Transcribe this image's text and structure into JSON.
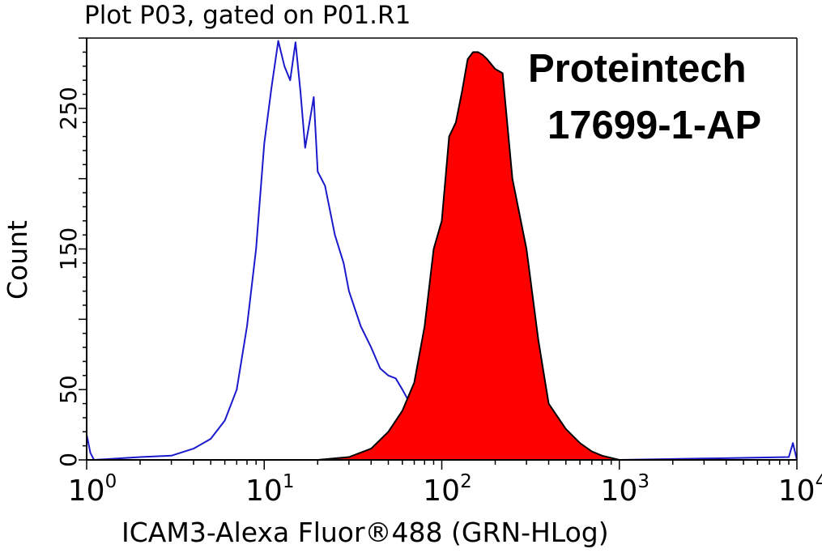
{
  "chart_data": {
    "type": "area",
    "title": "Plot P03, gated on P01.R1",
    "xlabel": "ICAM3-Alexa Fluor®488 (GRN-HLog)",
    "ylabel": "Count",
    "xscale": "log",
    "xlim": [
      1,
      10000
    ],
    "ylim": [
      0,
      300
    ],
    "x_ticks": [
      {
        "value": 1,
        "base": "10",
        "exp": "0"
      },
      {
        "value": 10,
        "base": "10",
        "exp": "1"
      },
      {
        "value": 100,
        "base": "10",
        "exp": "2"
      },
      {
        "value": 1000,
        "base": "10",
        "exp": "3"
      },
      {
        "value": 10000,
        "base": "10",
        "exp": "4"
      }
    ],
    "y_ticks": [
      "0",
      "50",
      "150",
      "250"
    ],
    "y_tick_values": [
      0,
      50,
      150,
      250
    ],
    "annotations": [
      "Proteintech",
      "17699-1-AP"
    ],
    "series": [
      {
        "style": "outline",
        "color": "#1a1acc",
        "x": [
          1,
          1.05,
          1.1,
          2,
          3,
          4,
          5,
          6,
          7,
          8,
          9,
          10,
          11,
          12,
          13,
          14,
          15,
          16,
          17,
          18,
          19,
          20,
          22,
          25,
          28,
          30,
          35,
          40,
          45,
          50,
          55,
          60,
          65,
          70,
          75,
          80,
          90,
          100,
          110,
          130,
          200,
          500,
          1000,
          3000,
          9000,
          9500,
          10000
        ],
        "y": [
          18,
          5,
          0,
          2,
          3,
          8,
          15,
          28,
          50,
          95,
          150,
          225,
          265,
          298,
          280,
          270,
          297,
          262,
          222,
          240,
          258,
          205,
          195,
          160,
          140,
          120,
          95,
          80,
          65,
          60,
          58,
          50,
          42,
          38,
          25,
          22,
          15,
          8,
          4,
          2,
          1,
          0,
          0,
          1,
          2,
          12,
          0
        ]
      },
      {
        "style": "filled",
        "color": "#ff0000",
        "x": [
          20,
          30,
          40,
          50,
          60,
          70,
          80,
          90,
          100,
          110,
          120,
          130,
          140,
          150,
          160,
          170,
          180,
          200,
          220,
          250,
          300,
          350,
          400,
          500,
          600,
          700,
          800,
          1000
        ],
        "y": [
          0,
          2,
          8,
          20,
          35,
          55,
          95,
          150,
          170,
          230,
          240,
          262,
          285,
          290,
          290,
          288,
          285,
          278,
          275,
          200,
          150,
          85,
          40,
          22,
          12,
          6,
          3,
          0
        ]
      }
    ]
  }
}
